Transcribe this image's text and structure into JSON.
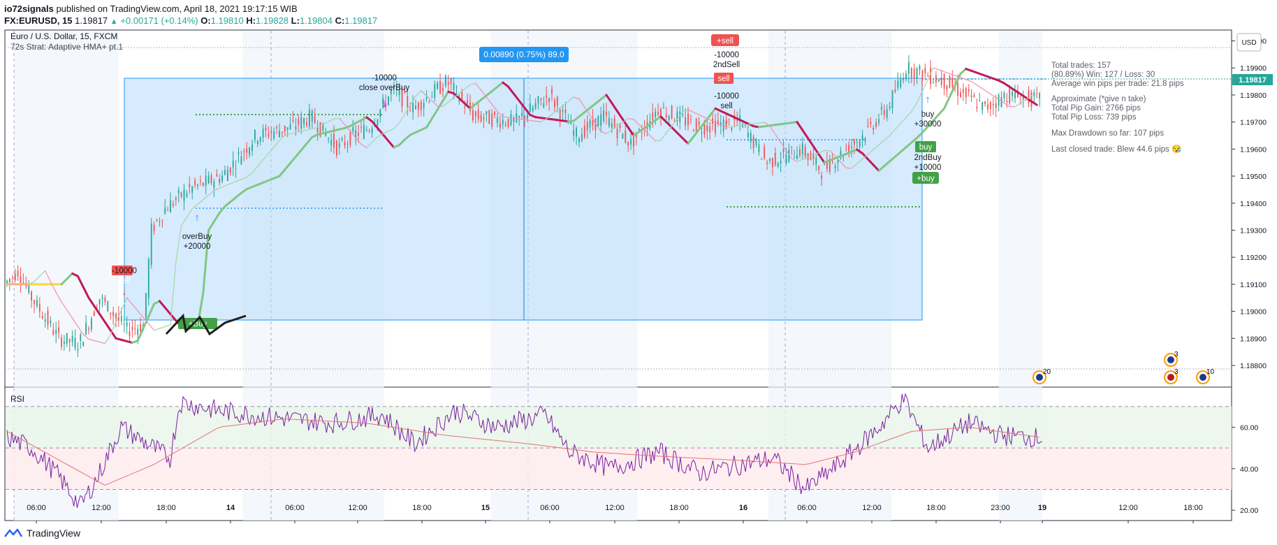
{
  "header": {
    "author": "io72signals",
    "published": "published on TradingView.com, April 18, 2021 19:17:15 WIB",
    "symbol": "FX:EURUSD, 15",
    "last": "1.19817",
    "change_arrow": "▲",
    "change": "+0.00171 (+0.14%)",
    "o_label": "O:",
    "o": "1.19810",
    "h_label": "H:",
    "h": "1.19828",
    "l_label": "L:",
    "l": "1.19804",
    "c_label": "C:",
    "c": "1.19817"
  },
  "legend": {
    "title": "Euro / U.S. Dollar, 15, FXCM",
    "indicator": "72s Strat: Adaptive HMA+ pt.1"
  },
  "stats": {
    "line1": "Total trades: 157",
    "line2": "(80.89%) Win: 127 / Loss: 30",
    "line3": "Average win pips per trade: 21.8 pips",
    "line4": "Approximate (*give n take)",
    "line5": "Total Pip Gain: 2766 pips",
    "line6": "Total Pip Loss: 739 pips",
    "line7": "Max Drawdown so far: 107 pips",
    "line8": "Last closed trade: Blew 44.6 pips 😪"
  },
  "measure_label": "0.00890 (0.75%) 89.0",
  "currency": "USD",
  "price_badge": "1.19817",
  "rsi_label": "RSI",
  "footer_brand": "TradingView",
  "annotations": {
    "a1": "-10000",
    "a1b": "sell",
    "a2": "overBuy",
    "a2b": "+20000",
    "a3": "-10000",
    "a3b": "close overBuy",
    "a4": "+sell",
    "a4b": "-10000",
    "a4c": "2ndSell",
    "a5": "sell",
    "a5b": "-10000",
    "a5c": "sell",
    "a6": "buy",
    "a6b": "+30000",
    "a7": "buy",
    "a7b": "2ndBuy",
    "a7c": "+10000",
    "a8": "+buy",
    "a9": "+Buy"
  },
  "events": [
    "20",
    "3",
    "3",
    "10"
  ],
  "chart_data": [
    {
      "type": "candlestick",
      "title": "Euro / U.S. Dollar, 15, FXCM",
      "ylim": [
        1.1872,
        1.2004
      ],
      "y_ticks": [
        "1.20000",
        "1.19900",
        "1.19800",
        "1.19700",
        "1.19600",
        "1.19500",
        "1.19400",
        "1.19300",
        "1.19200",
        "1.19100",
        "1.19000",
        "1.18900",
        "1.18800"
      ],
      "x_ticks": [
        "06:00",
        "12:00",
        "18:00",
        "14",
        "06:00",
        "12:00",
        "18:00",
        "15",
        "06:00",
        "12:00",
        "18:00",
        "16",
        "06:00",
        "12:00",
        "18:00",
        "23:00",
        "19",
        "12:00",
        "18:00"
      ],
      "anchors": [
        [
          0,
          1.191
        ],
        [
          10,
          1.1915
        ],
        [
          20,
          1.1905
        ],
        [
          40,
          1.189
        ],
        [
          55,
          1.1888
        ],
        [
          70,
          1.1905
        ],
        [
          90,
          1.1893
        ],
        [
          102,
          1.1895
        ],
        [
          108,
          1.193
        ],
        [
          118,
          1.1938
        ],
        [
          135,
          1.1945
        ],
        [
          160,
          1.195
        ],
        [
          185,
          1.1965
        ],
        [
          210,
          1.1968
        ],
        [
          225,
          1.1972
        ],
        [
          245,
          1.196
        ],
        [
          255,
          1.1965
        ],
        [
          268,
          1.1968
        ],
        [
          285,
          1.1982
        ],
        [
          300,
          1.1975
        ],
        [
          325,
          1.1985
        ],
        [
          345,
          1.1972
        ],
        [
          375,
          1.197
        ],
        [
          400,
          1.198
        ],
        [
          420,
          1.1965
        ],
        [
          440,
          1.1972
        ],
        [
          460,
          1.1962
        ],
        [
          480,
          1.1975
        ],
        [
          510,
          1.1968
        ],
        [
          540,
          1.197
        ],
        [
          560,
          1.1955
        ],
        [
          585,
          1.196
        ],
        [
          600,
          1.1952
        ],
        [
          630,
          1.1965
        ],
        [
          648,
          1.1975
        ],
        [
          662,
          1.199
        ],
        [
          690,
          1.1985
        ],
        [
          720,
          1.1975
        ],
        [
          735,
          1.198
        ],
        [
          760,
          1.1978
        ]
      ]
    },
    {
      "type": "line",
      "title": "RSI",
      "ylim": [
        15,
        78
      ],
      "y_ticks": [
        "60.00",
        "40.00",
        "20.00"
      ],
      "levels": [
        70,
        50,
        30
      ],
      "anchors": [
        [
          0,
          55
        ],
        [
          15,
          50
        ],
        [
          30,
          38
        ],
        [
          45,
          22
        ],
        [
          55,
          35
        ],
        [
          70,
          60
        ],
        [
          80,
          55
        ],
        [
          100,
          45
        ],
        [
          106,
          72
        ],
        [
          130,
          68
        ],
        [
          160,
          65
        ],
        [
          200,
          62
        ],
        [
          230,
          66
        ],
        [
          250,
          52
        ],
        [
          275,
          68
        ],
        [
          300,
          60
        ],
        [
          330,
          66
        ],
        [
          345,
          48
        ],
        [
          370,
          40
        ],
        [
          400,
          48
        ],
        [
          425,
          38
        ],
        [
          450,
          42
        ],
        [
          470,
          45
        ],
        [
          490,
          30
        ],
        [
          510,
          42
        ],
        [
          535,
          60
        ],
        [
          550,
          74
        ],
        [
          565,
          50
        ],
        [
          590,
          62
        ],
        [
          610,
          56
        ],
        [
          635,
          55
        ]
      ],
      "ma_anchors": [
        [
          0,
          58
        ],
        [
          30,
          45
        ],
        [
          60,
          32
        ],
        [
          90,
          42
        ],
        [
          130,
          60
        ],
        [
          170,
          64
        ],
        [
          220,
          62
        ],
        [
          270,
          56
        ],
        [
          320,
          52
        ],
        [
          360,
          48
        ],
        [
          400,
          46
        ],
        [
          450,
          44
        ],
        [
          490,
          42
        ],
        [
          520,
          48
        ],
        [
          555,
          58
        ],
        [
          590,
          60
        ],
        [
          635,
          55
        ]
      ]
    }
  ]
}
